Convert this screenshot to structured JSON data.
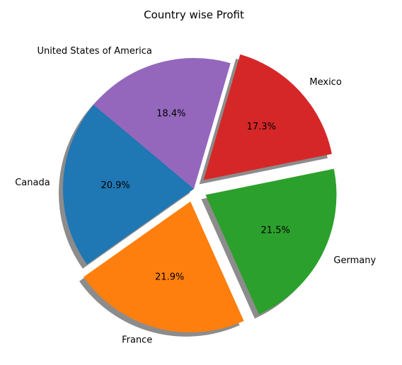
{
  "chart_data": {
    "type": "pie",
    "title": "Country wise Profit",
    "categories": [
      "Canada",
      "France",
      "Germany",
      "Mexico",
      "United States of America"
    ],
    "values": [
      20.9,
      21.9,
      21.5,
      17.3,
      18.4
    ],
    "percent_labels": [
      "20.9%",
      "21.9%",
      "21.5%",
      "17.3%",
      "18.4%"
    ],
    "colors": [
      "#1f77b4",
      "#ff7f0e",
      "#2ca02c",
      "#d62728",
      "#9467bd"
    ],
    "exploded": [
      false,
      true,
      true,
      true,
      false
    ],
    "start_angle_deg": 140,
    "shadow": true
  }
}
